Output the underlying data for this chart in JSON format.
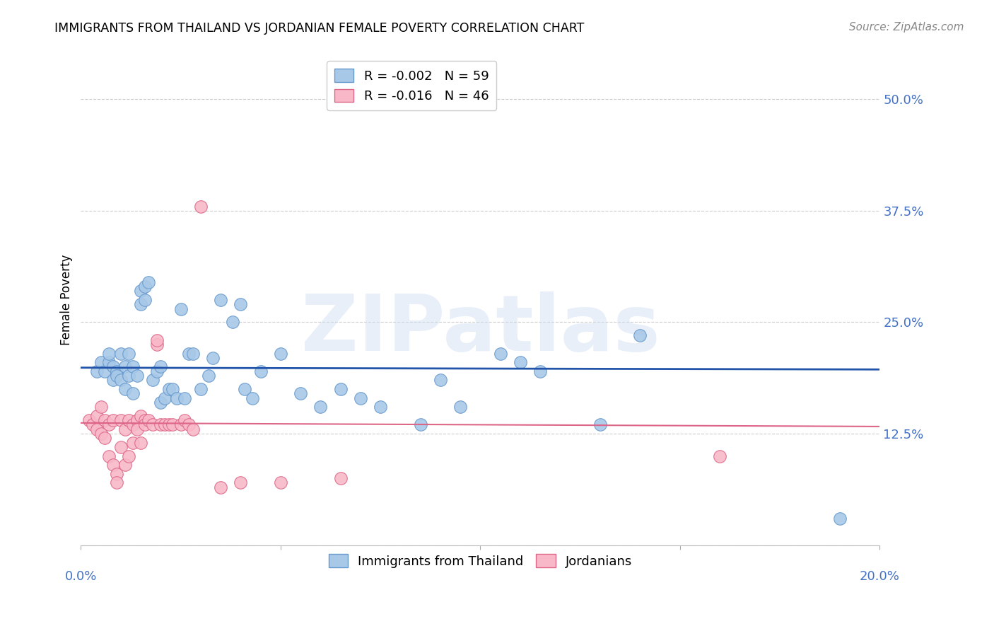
{
  "title": "IMMIGRANTS FROM THAILAND VS JORDANIAN FEMALE POVERTY CORRELATION CHART",
  "source": "Source: ZipAtlas.com",
  "ylabel": "Female Poverty",
  "ylim": [
    0.0,
    0.55
  ],
  "xlim": [
    0.0,
    0.2
  ],
  "blue_R": "-0.002",
  "blue_N": "59",
  "pink_R": "-0.016",
  "pink_N": "46",
  "blue_line_y": 0.198,
  "pink_line_y": 0.135,
  "blue_color": "#a8c8e8",
  "blue_edge": "#6699cc",
  "pink_color": "#f8b8c8",
  "pink_edge": "#dd6688",
  "blue_line_color": "#2255aa",
  "pink_line_color": "#dd6688",
  "watermark": "ZIPatlas",
  "yticks": [
    0.0,
    0.125,
    0.25,
    0.375,
    0.5
  ],
  "ytick_labels": [
    "",
    "12.5%",
    "25.0%",
    "37.5%",
    "50.0%"
  ],
  "blue_points": [
    [
      0.004,
      0.195
    ],
    [
      0.005,
      0.205
    ],
    [
      0.006,
      0.195
    ],
    [
      0.007,
      0.205
    ],
    [
      0.007,
      0.215
    ],
    [
      0.008,
      0.2
    ],
    [
      0.008,
      0.185
    ],
    [
      0.009,
      0.195
    ],
    [
      0.009,
      0.19
    ],
    [
      0.01,
      0.215
    ],
    [
      0.01,
      0.185
    ],
    [
      0.011,
      0.2
    ],
    [
      0.011,
      0.175
    ],
    [
      0.012,
      0.215
    ],
    [
      0.012,
      0.19
    ],
    [
      0.013,
      0.2
    ],
    [
      0.013,
      0.17
    ],
    [
      0.014,
      0.19
    ],
    [
      0.015,
      0.285
    ],
    [
      0.015,
      0.27
    ],
    [
      0.016,
      0.29
    ],
    [
      0.016,
      0.275
    ],
    [
      0.017,
      0.295
    ],
    [
      0.018,
      0.185
    ],
    [
      0.019,
      0.195
    ],
    [
      0.02,
      0.2
    ],
    [
      0.02,
      0.16
    ],
    [
      0.021,
      0.165
    ],
    [
      0.022,
      0.175
    ],
    [
      0.023,
      0.175
    ],
    [
      0.024,
      0.165
    ],
    [
      0.025,
      0.265
    ],
    [
      0.026,
      0.165
    ],
    [
      0.027,
      0.215
    ],
    [
      0.028,
      0.215
    ],
    [
      0.03,
      0.175
    ],
    [
      0.032,
      0.19
    ],
    [
      0.033,
      0.21
    ],
    [
      0.035,
      0.275
    ],
    [
      0.038,
      0.25
    ],
    [
      0.04,
      0.27
    ],
    [
      0.041,
      0.175
    ],
    [
      0.043,
      0.165
    ],
    [
      0.045,
      0.195
    ],
    [
      0.05,
      0.215
    ],
    [
      0.055,
      0.17
    ],
    [
      0.06,
      0.155
    ],
    [
      0.065,
      0.175
    ],
    [
      0.07,
      0.165
    ],
    [
      0.075,
      0.155
    ],
    [
      0.085,
      0.135
    ],
    [
      0.09,
      0.185
    ],
    [
      0.095,
      0.155
    ],
    [
      0.105,
      0.215
    ],
    [
      0.11,
      0.205
    ],
    [
      0.115,
      0.195
    ],
    [
      0.13,
      0.135
    ],
    [
      0.14,
      0.235
    ],
    [
      0.19,
      0.03
    ]
  ],
  "pink_points": [
    [
      0.002,
      0.14
    ],
    [
      0.003,
      0.135
    ],
    [
      0.004,
      0.145
    ],
    [
      0.004,
      0.13
    ],
    [
      0.005,
      0.155
    ],
    [
      0.005,
      0.125
    ],
    [
      0.006,
      0.14
    ],
    [
      0.006,
      0.12
    ],
    [
      0.007,
      0.135
    ],
    [
      0.007,
      0.1
    ],
    [
      0.008,
      0.14
    ],
    [
      0.008,
      0.09
    ],
    [
      0.009,
      0.08
    ],
    [
      0.009,
      0.07
    ],
    [
      0.01,
      0.14
    ],
    [
      0.01,
      0.11
    ],
    [
      0.011,
      0.13
    ],
    [
      0.011,
      0.09
    ],
    [
      0.012,
      0.14
    ],
    [
      0.012,
      0.1
    ],
    [
      0.013,
      0.135
    ],
    [
      0.013,
      0.115
    ],
    [
      0.014,
      0.14
    ],
    [
      0.014,
      0.13
    ],
    [
      0.015,
      0.145
    ],
    [
      0.015,
      0.115
    ],
    [
      0.016,
      0.14
    ],
    [
      0.016,
      0.135
    ],
    [
      0.017,
      0.14
    ],
    [
      0.018,
      0.135
    ],
    [
      0.019,
      0.225
    ],
    [
      0.019,
      0.23
    ],
    [
      0.02,
      0.135
    ],
    [
      0.021,
      0.135
    ],
    [
      0.022,
      0.135
    ],
    [
      0.023,
      0.135
    ],
    [
      0.025,
      0.135
    ],
    [
      0.026,
      0.14
    ],
    [
      0.027,
      0.135
    ],
    [
      0.028,
      0.13
    ],
    [
      0.03,
      0.38
    ],
    [
      0.035,
      0.065
    ],
    [
      0.04,
      0.07
    ],
    [
      0.05,
      0.07
    ],
    [
      0.065,
      0.075
    ],
    [
      0.16,
      0.1
    ]
  ]
}
